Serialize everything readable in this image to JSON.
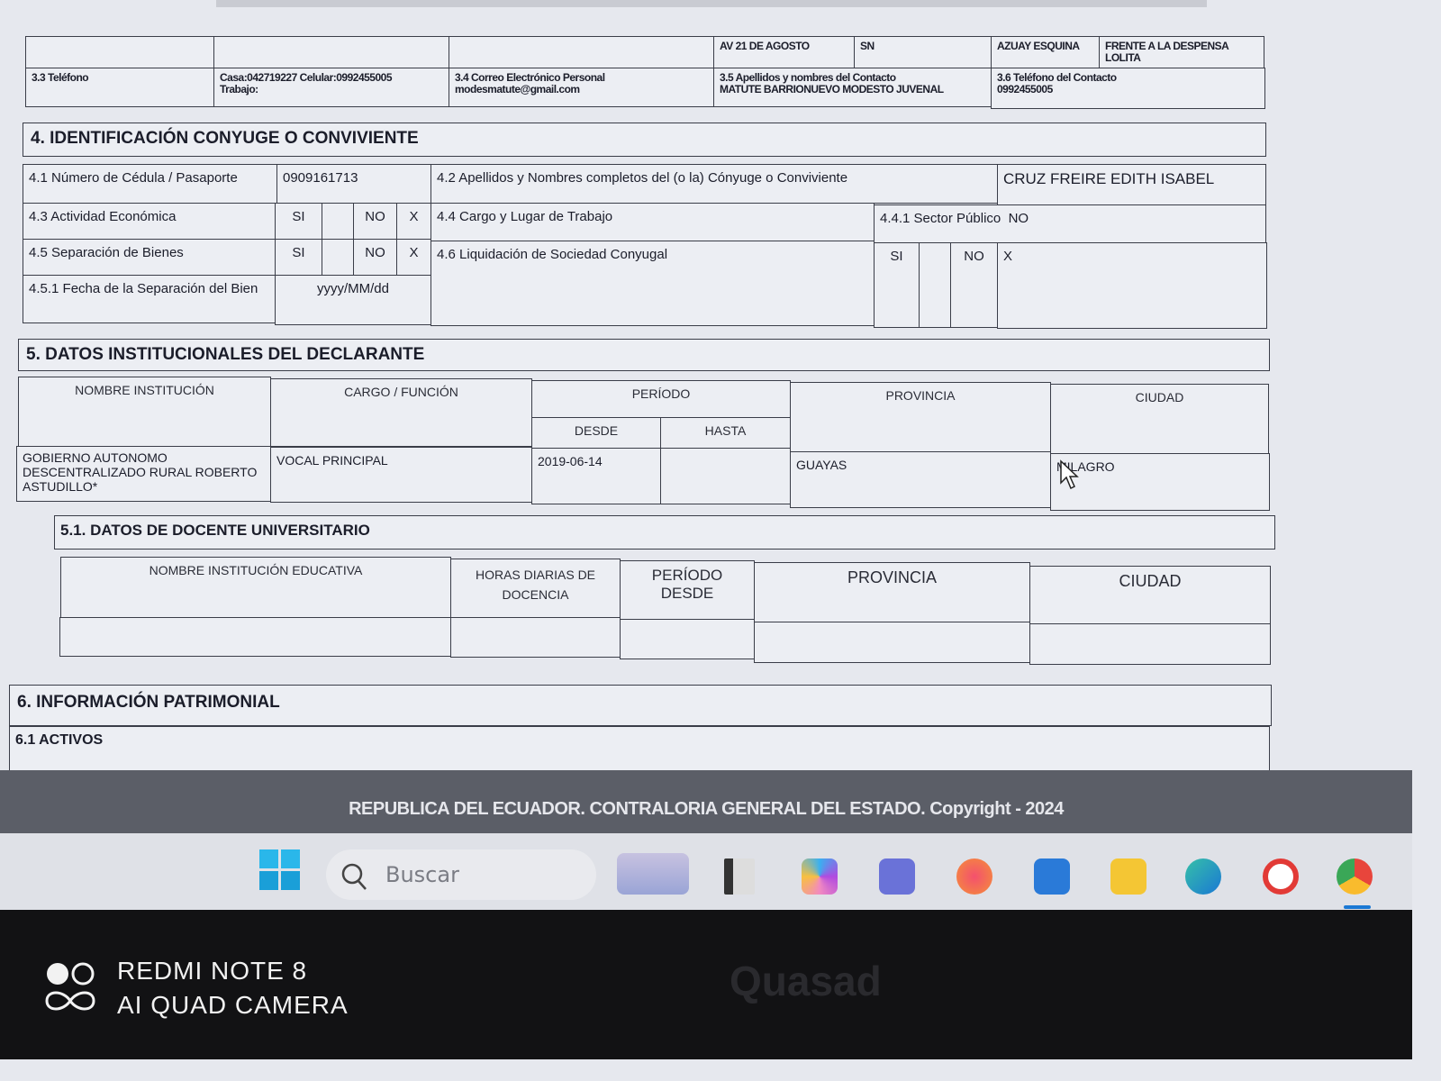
{
  "address_row": {
    "street": "AV 21 DE AGOSTO",
    "number": "SN",
    "intersection": "AZUAY ESQUINA",
    "reference": "FRENTE A LA DESPENSA LOLITA"
  },
  "contact_row": {
    "phone_label": "3.3 Teléfono",
    "phone_value_1": "Casa:042719227 Celular:0992455005",
    "phone_value_2": "Trabajo:",
    "email_label": "3.4 Correo Electrónico Personal",
    "email_value": "modesmatute@gmail.com",
    "contact_name_label": "3.5 Apellidos y nombres del Contacto",
    "contact_name_value": "MATUTE BARRIONUEVO MODESTO JUVENAL",
    "contact_phone_label": "3.6 Teléfono del Contacto",
    "contact_phone_value": "0992455005"
  },
  "section4": {
    "title": "4. IDENTIFICACIÓN CONYUGE O CONVIVIENTE",
    "id_label": "4.1 Número de Cédula / Pasaporte",
    "id_value": "0909161713",
    "name_label": "4.2 Apellidos y Nombres completos del (o la) Cónyuge o Conviviente",
    "name_value": "CRUZ FREIRE EDITH ISABEL",
    "activity_label": "4.3 Actividad Económica",
    "si": "SI",
    "no": "NO",
    "x": "X",
    "job_label": "4.4 Cargo y Lugar de Trabajo",
    "sector_label": "4.4.1 Sector Público",
    "sector_value": "NO",
    "separation_label": "4.5 Separación de Bienes",
    "liquidation_label": "4.6 Liquidación de Sociedad Conyugal",
    "separation_date_label": "4.5.1 Fecha de la Separación del Bien",
    "separation_date_placeholder": "yyyy/MM/dd"
  },
  "section5": {
    "title": "5. DATOS INSTITUCIONALES DEL DECLARANTE",
    "headers": {
      "institution": "NOMBRE INSTITUCIÓN",
      "role": "CARGO / FUNCIÓN",
      "period": "PERÍODO",
      "from": "DESDE",
      "to": "HASTA",
      "province": "PROVINCIA",
      "city": "CIUDAD"
    },
    "row": {
      "institution": "GOBIERNO AUTONOMO DESCENTRALIZADO RURAL ROBERTO ASTUDILLO*",
      "role": "VOCAL PRINCIPAL",
      "from": "2019-06-14",
      "to": "",
      "province": "GUAYAS",
      "city": "MILAGRO"
    }
  },
  "section51": {
    "title": "5.1. DATOS DE DOCENTE UNIVERSITARIO",
    "headers": {
      "institution": "NOMBRE INSTITUCIÓN EDUCATIVA",
      "hours": "HORAS DIARIAS DE DOCENCIA",
      "period": "PERÍODO DESDE",
      "province": "PROVINCIA",
      "city": "CIUDAD"
    }
  },
  "section6": {
    "title": "6. INFORMACIÓN PATRIMONIAL",
    "sub": "6.1 ACTIVOS"
  },
  "footer": "REPUBLICA DEL ECUADOR. CONTRALORIA GENERAL DEL ESTADO. Copyright - 2024",
  "taskbar": {
    "search_placeholder": "Buscar",
    "icons": [
      "windows-start-icon",
      "widgets-icon",
      "app-l-icon",
      "copilot-icon",
      "teams-icon",
      "firefox-icon",
      "store-icon",
      "file-explorer-icon",
      "edge-icon",
      "app-red-icon",
      "chrome-icon"
    ]
  },
  "watermark": {
    "line1": "REDMI NOTE 8",
    "line2": "AI QUAD CAMERA",
    "brand": "Quasad"
  }
}
